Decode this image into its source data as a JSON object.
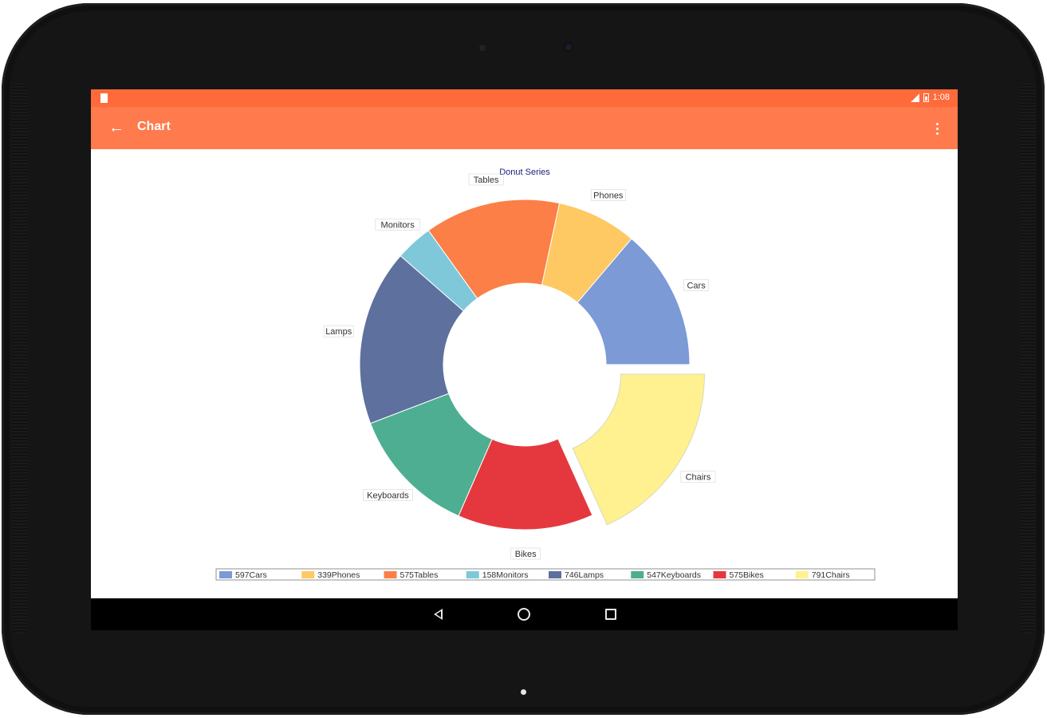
{
  "status_bar": {
    "time": "1:08"
  },
  "app_bar": {
    "title": "Chart"
  },
  "colors": {
    "status_bar": "#ff6a3a",
    "app_bar": "#ff7a4c",
    "title_text": "#1a237e"
  },
  "chart_data": {
    "type": "pie",
    "variant": "donut",
    "title": "Donut Series",
    "legend_position": "bottom",
    "exploded": "Chairs",
    "slices": [
      {
        "label": "Cars",
        "value": 597,
        "color": "#7b9ad6",
        "legend": "597Cars"
      },
      {
        "label": "Phones",
        "value": 339,
        "color": "#fec863",
        "legend": "339Phones"
      },
      {
        "label": "Tables",
        "value": 575,
        "color": "#fb7f47",
        "legend": "575Tables"
      },
      {
        "label": "Monitors",
        "value": 158,
        "color": "#7ec8d9",
        "legend": "158Monitors"
      },
      {
        "label": "Lamps",
        "value": 746,
        "color": "#5d709e",
        "legend": "746Lamps"
      },
      {
        "label": "Keyboards",
        "value": 547,
        "color": "#4eae92",
        "legend": "547Keyboards"
      },
      {
        "label": "Bikes",
        "value": 575,
        "color": "#e5383e",
        "legend": "575Bikes"
      },
      {
        "label": "Chairs",
        "value": 791,
        "color": "#fff18f",
        "legend": "791Chairs"
      }
    ]
  }
}
